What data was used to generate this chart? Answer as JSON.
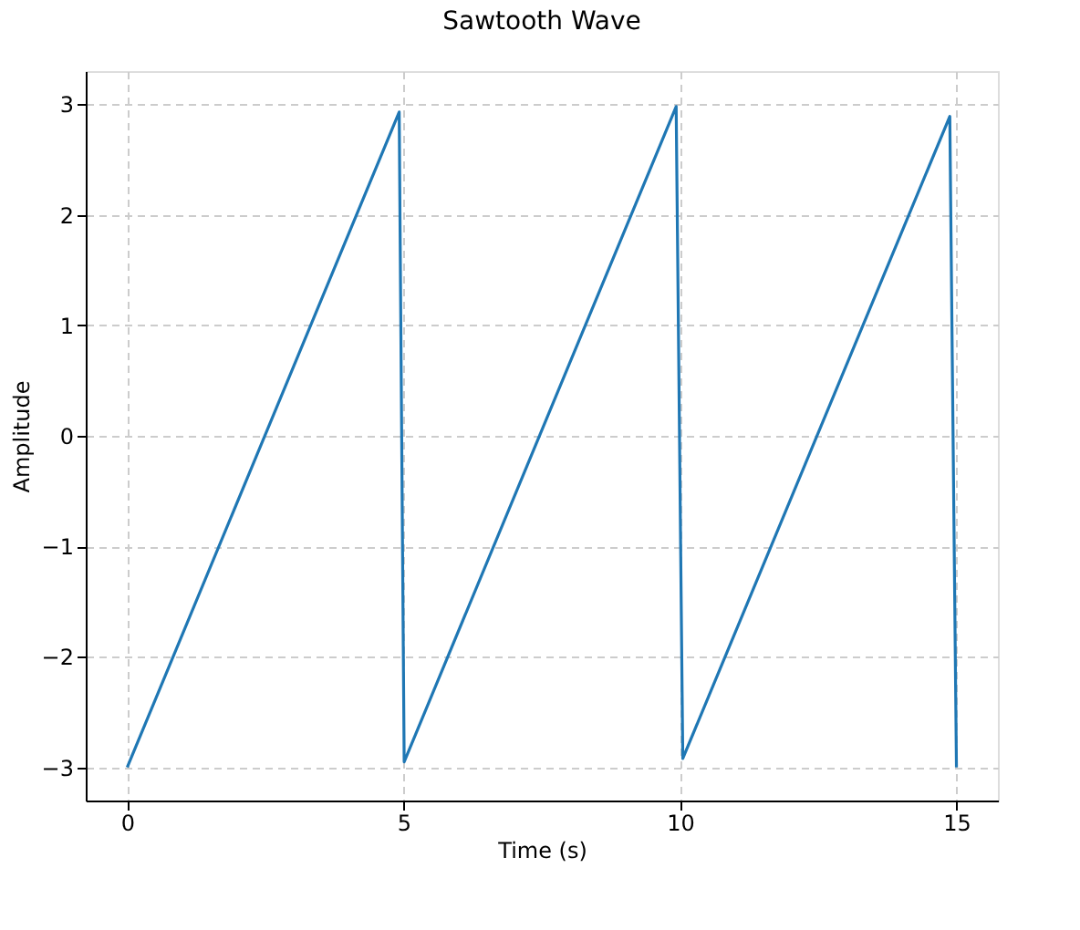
{
  "chart_data": {
    "type": "line",
    "title": "Sawtooth Wave",
    "xlabel": "Time (s)",
    "ylabel": "Amplitude",
    "series": [
      {
        "color": "#1f77b4",
        "x": [
          0,
          4.92,
          5.01,
          9.93,
          10.05,
          14.88,
          15
        ],
        "values": [
          -3,
          2.93,
          -2.95,
          2.98,
          -2.92,
          2.89,
          -3
        ]
      }
    ],
    "xlim": [
      -0.75,
      15.75
    ],
    "ylim": [
      -3.3,
      3.3
    ],
    "xticks": [
      0,
      5,
      10,
      15
    ],
    "yticks": [
      {
        "value": -3,
        "label": "−3"
      },
      {
        "value": -2,
        "label": "−2"
      },
      {
        "value": -1,
        "label": "−1"
      },
      0,
      1,
      2,
      3
    ],
    "grid": true,
    "line_style": "solid",
    "marker": "none"
  }
}
